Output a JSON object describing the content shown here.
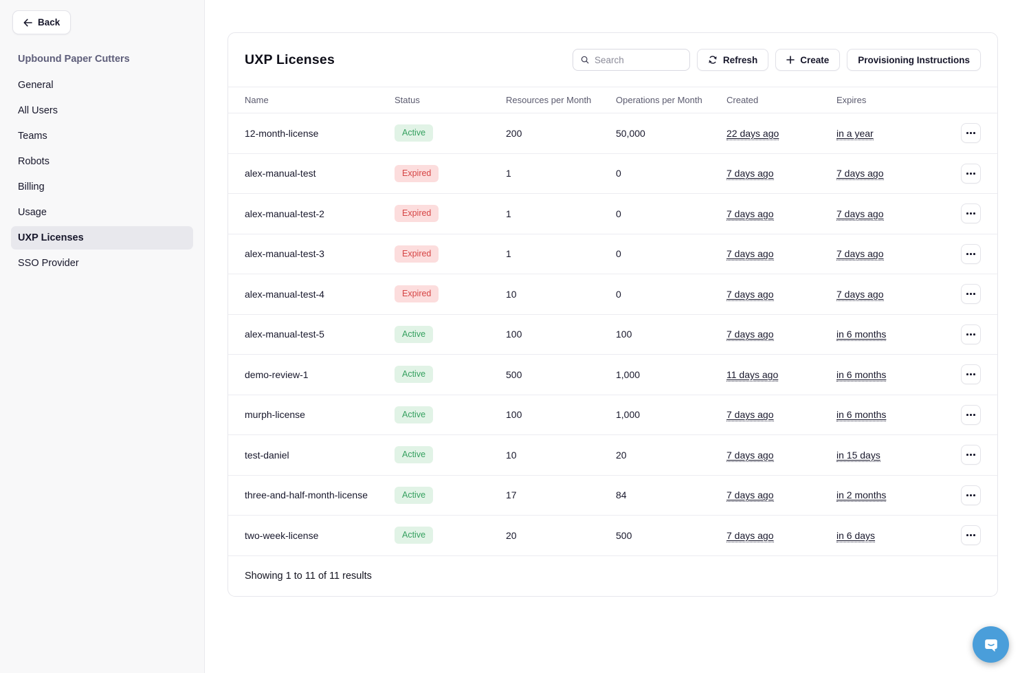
{
  "sidebar": {
    "back_label": "Back",
    "org_name": "Upbound Paper Cutters",
    "items": [
      {
        "label": "General",
        "active": false
      },
      {
        "label": "All Users",
        "active": false
      },
      {
        "label": "Teams",
        "active": false
      },
      {
        "label": "Robots",
        "active": false
      },
      {
        "label": "Billing",
        "active": false
      },
      {
        "label": "Usage",
        "active": false
      },
      {
        "label": "UXP Licenses",
        "active": true
      },
      {
        "label": "SSO Provider",
        "active": false
      }
    ]
  },
  "main": {
    "title": "UXP Licenses",
    "toolbar": {
      "search_placeholder": "Search",
      "refresh_label": "Refresh",
      "create_label": "Create",
      "provisioning_label": "Provisioning Instructions"
    },
    "table": {
      "columns": [
        "Name",
        "Status",
        "Resources per Month",
        "Operations per Month",
        "Created",
        "Expires"
      ],
      "rows": [
        {
          "name": "12-month-license",
          "status": "Active",
          "resources": "200",
          "operations": "50,000",
          "created": "22 days ago",
          "expires": "in a year"
        },
        {
          "name": "alex-manual-test",
          "status": "Expired",
          "resources": "1",
          "operations": "0",
          "created": "7 days ago",
          "expires": "7 days ago"
        },
        {
          "name": "alex-manual-test-2",
          "status": "Expired",
          "resources": "1",
          "operations": "0",
          "created": "7 days ago",
          "expires": "7 days ago"
        },
        {
          "name": "alex-manual-test-3",
          "status": "Expired",
          "resources": "1",
          "operations": "0",
          "created": "7 days ago",
          "expires": "7 days ago"
        },
        {
          "name": "alex-manual-test-4",
          "status": "Expired",
          "resources": "10",
          "operations": "0",
          "created": "7 days ago",
          "expires": "7 days ago"
        },
        {
          "name": "alex-manual-test-5",
          "status": "Active",
          "resources": "100",
          "operations": "100",
          "created": "7 days ago",
          "expires": "in 6 months"
        },
        {
          "name": "demo-review-1",
          "status": "Active",
          "resources": "500",
          "operations": "1,000",
          "created": "11 days ago",
          "expires": "in 6 months"
        },
        {
          "name": "murph-license",
          "status": "Active",
          "resources": "100",
          "operations": "1,000",
          "created": "7 days ago",
          "expires": "in 6 months"
        },
        {
          "name": "test-daniel",
          "status": "Active",
          "resources": "10",
          "operations": "20",
          "created": "7 days ago",
          "expires": "in 15 days"
        },
        {
          "name": "three-and-half-month-license",
          "status": "Active",
          "resources": "17",
          "operations": "84",
          "created": "7 days ago",
          "expires": "in 2 months"
        },
        {
          "name": "two-week-license",
          "status": "Active",
          "resources": "20",
          "operations": "500",
          "created": "7 days ago",
          "expires": "in 6 days"
        }
      ],
      "footer": "Showing 1 to 11 of 11 results"
    }
  },
  "colors": {
    "active_bg": "#e1f3e6",
    "active_text": "#35a05f",
    "expired_bg": "#fcdddd",
    "expired_text": "#d64545",
    "chat_button": "#4a9eda"
  }
}
